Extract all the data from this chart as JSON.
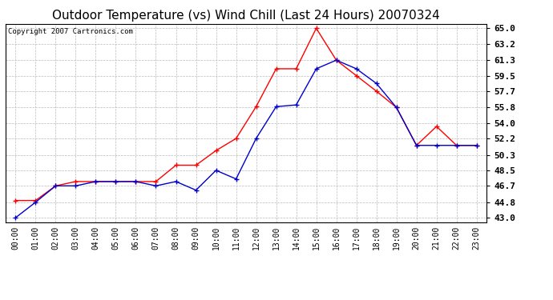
{
  "title": "Outdoor Temperature (vs) Wind Chill (Last 24 Hours) 20070324",
  "copyright": "Copyright 2007 Cartronics.com",
  "x_labels": [
    "00:00",
    "01:00",
    "02:00",
    "03:00",
    "04:00",
    "05:00",
    "06:00",
    "07:00",
    "08:00",
    "09:00",
    "10:00",
    "11:00",
    "12:00",
    "13:00",
    "14:00",
    "15:00",
    "16:00",
    "17:00",
    "18:00",
    "19:00",
    "20:00",
    "21:00",
    "22:00",
    "23:00"
  ],
  "temp_red": [
    45.0,
    45.0,
    46.7,
    47.2,
    47.2,
    47.2,
    47.2,
    47.2,
    49.1,
    49.1,
    50.8,
    52.2,
    55.9,
    60.3,
    60.3,
    65.0,
    61.3,
    59.5,
    57.7,
    55.8,
    51.4,
    53.6,
    51.4,
    51.4
  ],
  "wind_chill_blue": [
    43.0,
    44.8,
    46.7,
    46.7,
    47.2,
    47.2,
    47.2,
    46.7,
    47.2,
    46.2,
    48.5,
    47.5,
    52.2,
    55.9,
    56.1,
    60.3,
    61.3,
    60.3,
    58.6,
    55.8,
    51.4,
    51.4,
    51.4,
    51.4
  ],
  "y_ticks": [
    43.0,
    44.8,
    46.7,
    48.5,
    50.3,
    52.2,
    54.0,
    55.8,
    57.7,
    59.5,
    61.3,
    63.2,
    65.0
  ],
  "ylim": [
    42.5,
    65.5
  ],
  "bg_color": "#ffffff",
  "plot_bg_color": "#ffffff",
  "grid_color": "#bbbbbb",
  "red_color": "#ff0000",
  "blue_color": "#0000cc",
  "title_fontsize": 11,
  "copyright_fontsize": 6.5,
  "tick_fontsize": 7,
  "ytick_fontsize": 8
}
